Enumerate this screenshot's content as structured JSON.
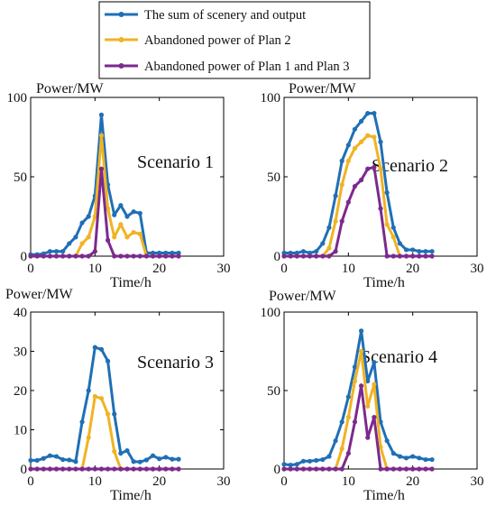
{
  "legend": {
    "items": [
      {
        "label": "The sum of scenery and output",
        "color": "#1f6fb5"
      },
      {
        "label": "Abandoned power of Plan 2",
        "color": "#f0b323"
      },
      {
        "label": "Abandoned power of Plan 1 and Plan 3",
        "color": "#7b2a8d"
      }
    ],
    "placement": "top-center"
  },
  "chart_data": [
    {
      "type": "line",
      "annotation": "Scenario 1",
      "ylabel": "Power/MW",
      "xlabel": "Time/h",
      "xlim": [
        0,
        30
      ],
      "ylim": [
        0,
        100
      ],
      "xticks": [
        0,
        10,
        20,
        30
      ],
      "yticks": [
        0,
        50,
        100
      ],
      "x": [
        0,
        1,
        2,
        3,
        4,
        5,
        6,
        7,
        8,
        9,
        10,
        11,
        12,
        13,
        14,
        15,
        16,
        17,
        18,
        19,
        20,
        21,
        22,
        23
      ],
      "series": [
        {
          "name": "The sum of scenery and output",
          "color": "#1f6fb5",
          "values": [
            1,
            1,
            1.5,
            3,
            3,
            3,
            8,
            12,
            21,
            25,
            38,
            89,
            45,
            26,
            32,
            25,
            28,
            27,
            2,
            2,
            2,
            2,
            2,
            2
          ]
        },
        {
          "name": "Abandoned power of Plan 2",
          "color": "#f0b323",
          "values": [
            0,
            0,
            0,
            0,
            0,
            0,
            0,
            0,
            8,
            12,
            25,
            76,
            30,
            12,
            20,
            12,
            15,
            14,
            0,
            0,
            0,
            0,
            0,
            0
          ]
        },
        {
          "name": "Abandoned power of Plan 1 and Plan 3",
          "color": "#7b2a8d",
          "values": [
            0,
            0,
            0,
            0,
            0,
            0,
            0,
            0,
            0,
            0,
            3,
            55,
            10,
            0,
            0,
            0,
            0,
            0,
            0,
            0,
            0,
            0,
            0,
            0
          ]
        }
      ]
    },
    {
      "type": "line",
      "annotation": "Scenario 2",
      "ylabel": "Power/MW",
      "xlabel": "Time/h",
      "xlim": [
        0,
        30
      ],
      "ylim": [
        0,
        100
      ],
      "xticks": [
        0,
        10,
        20,
        30
      ],
      "yticks": [
        0,
        50,
        100
      ],
      "x": [
        0,
        1,
        2,
        3,
        4,
        5,
        6,
        7,
        8,
        9,
        10,
        11,
        12,
        13,
        14,
        15,
        16,
        17,
        18,
        19,
        20,
        21,
        22,
        23
      ],
      "series": [
        {
          "name": "The sum of scenery and output",
          "color": "#1f6fb5",
          "values": [
            2,
            2,
            2,
            3,
            2,
            3,
            8,
            18,
            38,
            60,
            70,
            80,
            85,
            90,
            90,
            72,
            40,
            18,
            8,
            4,
            4,
            3,
            3,
            3
          ]
        },
        {
          "name": "Abandoned power of Plan 2",
          "color": "#f0b323",
          "values": [
            0,
            0,
            0,
            0,
            0,
            0,
            0,
            5,
            22,
            45,
            60,
            68,
            72,
            76,
            75,
            55,
            20,
            12,
            0,
            0,
            0,
            0,
            0,
            0
          ]
        },
        {
          "name": "Abandoned power of Plan 1 and Plan 3",
          "color": "#7b2a8d",
          "values": [
            0,
            0,
            0,
            0,
            0,
            0,
            0,
            0,
            3,
            22,
            34,
            44,
            48,
            55,
            56,
            30,
            0,
            0,
            0,
            0,
            0,
            0,
            0,
            0
          ]
        }
      ]
    },
    {
      "type": "line",
      "annotation": "Scenario 3",
      "ylabel": "Power/MW",
      "xlabel": "Time/h",
      "xlim": [
        0,
        30
      ],
      "ylim": [
        0,
        40
      ],
      "xticks": [
        0,
        10,
        20,
        30
      ],
      "yticks": [
        0,
        10,
        20,
        30,
        40
      ],
      "x": [
        0,
        1,
        2,
        3,
        4,
        5,
        6,
        7,
        8,
        9,
        10,
        11,
        12,
        13,
        14,
        15,
        16,
        17,
        18,
        19,
        20,
        21,
        22,
        23
      ],
      "series": [
        {
          "name": "The sum of scenery and output",
          "color": "#1f6fb5",
          "values": [
            2.2,
            2.2,
            2.7,
            3.4,
            3.2,
            2.4,
            2.3,
            1.9,
            12,
            20,
            31,
            30.5,
            27.5,
            14,
            4,
            4.7,
            1.9,
            1.8,
            2.3,
            3.4,
            2.6,
            3,
            2.5,
            2.5
          ]
        },
        {
          "name": "Abandoned power of Plan 2",
          "color": "#f0b323",
          "values": [
            0,
            0,
            0,
            0,
            0,
            0,
            0,
            0,
            0,
            8,
            18.5,
            18,
            14,
            4.5,
            0,
            0,
            0,
            0,
            0,
            0,
            0,
            0,
            0,
            0
          ]
        },
        {
          "name": "Abandoned power of Plan 1 and Plan 3",
          "color": "#7b2a8d",
          "values": [
            0,
            0,
            0,
            0,
            0,
            0,
            0,
            0,
            0,
            0,
            0,
            0,
            0,
            0,
            0,
            0,
            0,
            0,
            0,
            0,
            0,
            0,
            0,
            0
          ]
        }
      ]
    },
    {
      "type": "line",
      "annotation": "Scenario 4",
      "ylabel": "Power/MW",
      "xlabel": "Time/h",
      "xlim": [
        0,
        30
      ],
      "ylim": [
        0,
        100
      ],
      "xticks": [
        0,
        10,
        20,
        30
      ],
      "yticks": [
        0,
        50,
        100
      ],
      "x": [
        0,
        1,
        2,
        3,
        4,
        5,
        6,
        7,
        8,
        9,
        10,
        11,
        12,
        13,
        14,
        15,
        16,
        17,
        18,
        19,
        20,
        21,
        22,
        23
      ],
      "series": [
        {
          "name": "The sum of scenery and output",
          "color": "#1f6fb5",
          "values": [
            3,
            2.5,
            3,
            5,
            5,
            5.5,
            6,
            8,
            18,
            30,
            46,
            65,
            88,
            56,
            68,
            30,
            18,
            10,
            8,
            7,
            8,
            7,
            6,
            6
          ]
        },
        {
          "name": "Abandoned power of Plan 2",
          "color": "#f0b323",
          "values": [
            0,
            0,
            0,
            0,
            0,
            0,
            0,
            0,
            0,
            13,
            33,
            56,
            75,
            40,
            54,
            14,
            0,
            0,
            0,
            0,
            0,
            0,
            0,
            0
          ]
        },
        {
          "name": "Abandoned power of Plan 1 and Plan 3",
          "color": "#7b2a8d",
          "values": [
            0,
            0,
            0,
            0,
            0,
            0,
            0,
            0,
            0,
            0,
            10,
            30,
            53,
            20,
            33,
            0,
            0,
            0,
            0,
            0,
            0,
            0,
            0,
            0
          ]
        }
      ]
    }
  ]
}
